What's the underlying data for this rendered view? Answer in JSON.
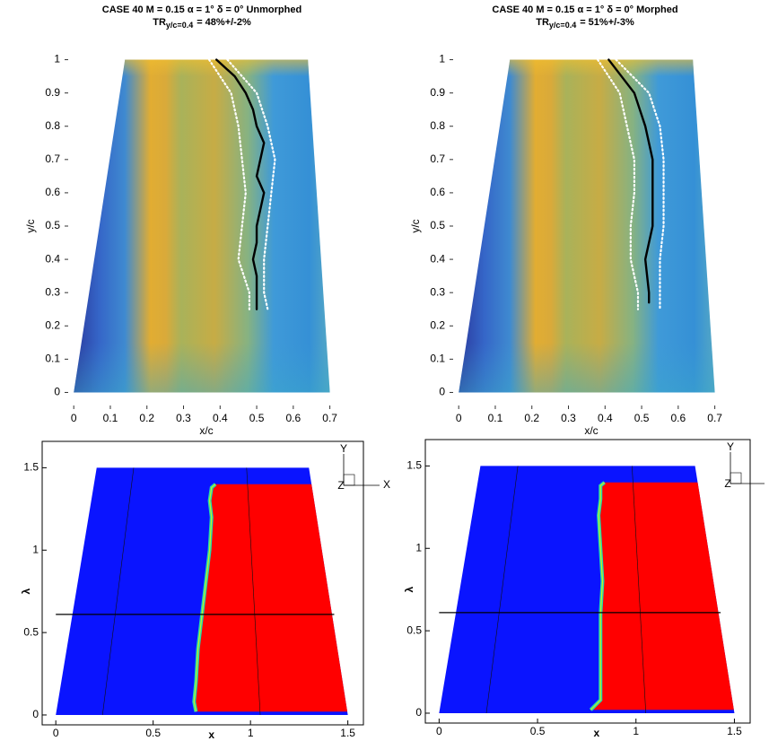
{
  "chart_data": [
    {
      "type": "transition-map",
      "title": "CASE  40  M = 0.15  α = 1°  δ = 0°  Unmorphed",
      "subtitle": "TR",
      "subtitle_subscript": "y/c=0.4",
      "subtitle_value": "= 48%+/-2%",
      "xlabel": "x/c",
      "ylabel": "y/c",
      "xlim": [
        -0.025,
        0.75
      ],
      "ylim": [
        -0.05,
        1.05
      ],
      "xticks": [
        0,
        0.1,
        0.2,
        0.3,
        0.4,
        0.5,
        0.6,
        0.7
      ],
      "yticks": [
        0,
        0.1,
        0.2,
        0.3,
        0.4,
        0.5,
        0.6,
        0.7,
        0.8,
        0.9,
        1
      ],
      "series": [
        {
          "color": "#ffffff",
          "line_style": "dotted",
          "y": [
            1,
            0.9,
            0.8,
            0.7,
            0.6,
            0.5,
            0.4,
            0.3,
            0.25
          ],
          "x": [
            0.37,
            0.43,
            0.45,
            0.46,
            0.47,
            0.46,
            0.45,
            0.48,
            0.48
          ]
        },
        {
          "color": "#ffffff",
          "line_style": "dotted",
          "y": [
            1,
            0.9,
            0.8,
            0.7,
            0.6,
            0.5,
            0.4,
            0.3,
            0.25
          ],
          "x": [
            0.42,
            0.5,
            0.53,
            0.55,
            0.54,
            0.53,
            0.52,
            0.52,
            0.53
          ]
        },
        {
          "color": "#000000",
          "line_style": "solid",
          "y": [
            1,
            0.95,
            0.9,
            0.85,
            0.8,
            0.75,
            0.7,
            0.65,
            0.6,
            0.55,
            0.5,
            0.45,
            0.4,
            0.35,
            0.3,
            0.25
          ],
          "x": [
            0.39,
            0.44,
            0.47,
            0.49,
            0.5,
            0.52,
            0.51,
            0.5,
            0.52,
            0.51,
            0.5,
            0.5,
            0.49,
            0.5,
            0.5,
            0.5
          ]
        }
      ]
    },
    {
      "type": "transition-map",
      "title": "CASE  40  M = 0.15  α = 1°  δ = 0°  Morphed",
      "subtitle": "TR",
      "subtitle_subscript": "y/c=0.4",
      "subtitle_value": "= 51%+/-3%",
      "xlabel": "x/c",
      "ylabel": "y/c",
      "xlim": [
        -0.025,
        0.75
      ],
      "ylim": [
        -0.05,
        1.05
      ],
      "xticks": [
        0,
        0.1,
        0.2,
        0.3,
        0.4,
        0.5,
        0.6,
        0.7
      ],
      "yticks": [
        0,
        0.1,
        0.2,
        0.3,
        0.4,
        0.5,
        0.6,
        0.7,
        0.8,
        0.9,
        1
      ],
      "series": [
        {
          "color": "#ffffff",
          "line_style": "dotted",
          "y": [
            1,
            0.9,
            0.8,
            0.7,
            0.6,
            0.5,
            0.4,
            0.3,
            0.25
          ],
          "x": [
            0.38,
            0.44,
            0.46,
            0.48,
            0.48,
            0.47,
            0.47,
            0.49,
            0.49
          ]
        },
        {
          "color": "#ffffff",
          "line_style": "dotted",
          "y": [
            1,
            0.9,
            0.8,
            0.7,
            0.6,
            0.5,
            0.4,
            0.3,
            0.25
          ],
          "x": [
            0.43,
            0.52,
            0.55,
            0.56,
            0.56,
            0.56,
            0.55,
            0.55,
            0.55
          ]
        },
        {
          "color": "#000000",
          "line_style": "solid",
          "y": [
            1,
            0.9,
            0.8,
            0.7,
            0.6,
            0.5,
            0.4,
            0.3,
            0.27
          ],
          "x": [
            0.41,
            0.48,
            0.51,
            0.53,
            0.53,
            0.53,
            0.51,
            0.52,
            0.52
          ]
        }
      ]
    },
    {
      "type": "contour",
      "xlabel": "x",
      "ylabel": "λ",
      "xlim": [
        -0.07,
        1.58
      ],
      "ylim": [
        -0.06,
        1.66
      ],
      "xticks": [
        0,
        0.5,
        1,
        1.5
      ],
      "yticks": [
        0,
        0.5,
        1,
        1.5
      ],
      "triad": [
        "Y",
        "X",
        "Z"
      ],
      "section_y": 0.61,
      "series": [
        {
          "color": "#ff0000",
          "y": [
            0.02,
            0.08,
            0.2,
            0.4,
            0.6,
            0.8,
            1.0,
            1.2,
            1.3,
            1.38,
            1.4
          ],
          "x": [
            0.72,
            0.71,
            0.72,
            0.73,
            0.75,
            0.77,
            0.79,
            0.8,
            0.79,
            0.8,
            0.82
          ]
        }
      ]
    },
    {
      "type": "contour",
      "xlabel": "x",
      "ylabel": "λ",
      "xlim": [
        -0.07,
        1.58
      ],
      "ylim": [
        -0.06,
        1.66
      ],
      "xticks": [
        0,
        0.5,
        1,
        1.5
      ],
      "yticks": [
        0,
        0.5,
        1,
        1.5
      ],
      "triad": [
        "Y",
        "Z"
      ],
      "section_y": 0.61,
      "series": [
        {
          "color": "#ff0000",
          "y": [
            0.02,
            0.08,
            0.2,
            0.4,
            0.6,
            0.8,
            1.0,
            1.2,
            1.3,
            1.38,
            1.4
          ],
          "x": [
            0.77,
            0.82,
            0.82,
            0.82,
            0.82,
            0.83,
            0.82,
            0.81,
            0.82,
            0.82,
            0.84
          ]
        }
      ]
    }
  ]
}
